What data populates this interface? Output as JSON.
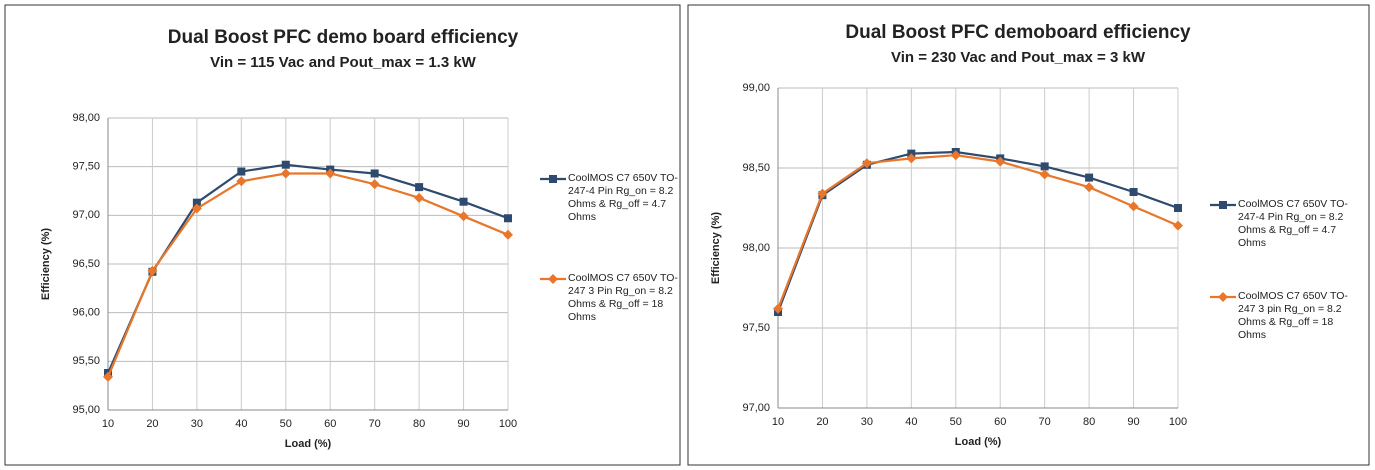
{
  "chart_data": [
    {
      "type": "line",
      "title": "Dual Boost PFC demo board efficiency",
      "subtitle": "Vin = 115 Vac and Pout_max = 1.3 kW",
      "x_label": "Load (%)",
      "y_label": "Efficiency (%)",
      "x": [
        10,
        20,
        30,
        40,
        50,
        60,
        70,
        80,
        90,
        100
      ],
      "xlim": [
        10,
        100
      ],
      "xticks": [
        10,
        20,
        30,
        40,
        50,
        60,
        70,
        80,
        90,
        100
      ],
      "ylim": [
        95,
        98
      ],
      "yticks": [
        {
          "value": 95,
          "label": "95,00"
        },
        {
          "value": 95.5,
          "label": "95,50"
        },
        {
          "value": 96,
          "label": "96,00"
        },
        {
          "value": 96.5,
          "label": "96,50"
        },
        {
          "value": 97,
          "label": "97,00"
        },
        {
          "value": 97.5,
          "label": "97,50"
        },
        {
          "value": 98,
          "label": "98,00"
        }
      ],
      "grid": true,
      "legend": "right",
      "series": [
        {
          "name": "CoolMOS C7 650V TO-247-4 Pin Rg_on = 8.2 Ohms & Rg_off = 4.7 Ohms",
          "color": "#2e4a6e",
          "marker": "square",
          "values": [
            95.38,
            96.42,
            97.13,
            97.45,
            97.52,
            97.47,
            97.43,
            97.29,
            97.14,
            96.97
          ]
        },
        {
          "name": "CoolMOS C7 650V TO-247 3 Pin Rg_on = 8.2 Ohms & Rg_off = 18 Ohms",
          "color": "#e8762b",
          "marker": "diamond",
          "values": [
            95.34,
            96.43,
            97.07,
            97.35,
            97.43,
            97.43,
            97.32,
            97.18,
            96.99,
            96.8
          ]
        }
      ]
    },
    {
      "type": "line",
      "title": "Dual Boost PFC demoboard efficiency",
      "subtitle": "Vin = 230 Vac and Pout_max = 3 kW",
      "x_label": "Load (%)",
      "y_label": "Efficiency (%)",
      "x": [
        10,
        20,
        30,
        40,
        50,
        60,
        70,
        80,
        90,
        100
      ],
      "xlim": [
        10,
        100
      ],
      "xticks": [
        10,
        20,
        30,
        40,
        50,
        60,
        70,
        80,
        90,
        100
      ],
      "ylim": [
        97,
        99
      ],
      "yticks": [
        {
          "value": 97,
          "label": "97,00"
        },
        {
          "value": 97.5,
          "label": "97,50"
        },
        {
          "value": 98,
          "label": "98,00"
        },
        {
          "value": 98.5,
          "label": "98,50"
        },
        {
          "value": 99,
          "label": "99,00"
        }
      ],
      "grid": true,
      "legend": "right",
      "series": [
        {
          "name": "CoolMOS C7 650V TO-247-4 Pin Rg_on = 8.2 Ohms & Rg_off = 4.7 Ohms",
          "color": "#2e4a6e",
          "marker": "square",
          "values": [
            97.6,
            98.33,
            98.52,
            98.59,
            98.6,
            98.56,
            98.51,
            98.44,
            98.35,
            98.25
          ]
        },
        {
          "name": "CoolMOS C7 650V TO-247 3 pin Rg_on = 8.2 Ohms & Rg_off = 18 Ohms",
          "color": "#e8762b",
          "marker": "diamond",
          "values": [
            97.62,
            98.34,
            98.53,
            98.56,
            98.58,
            98.54,
            98.46,
            98.38,
            98.26,
            98.14
          ]
        }
      ]
    }
  ]
}
